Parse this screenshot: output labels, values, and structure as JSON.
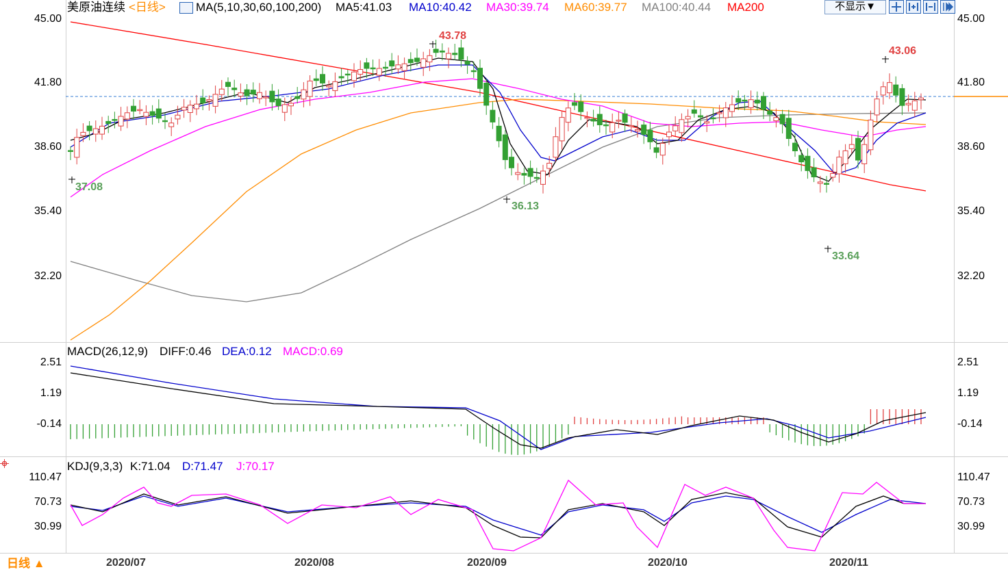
{
  "header": {
    "instrument": "美原油连续",
    "period": "<日线>",
    "indicator": "MA(5,10,30,60,100,200)",
    "ma5": "MA5:41.03",
    "ma10": "MA10:40.42",
    "ma30": "MA30:39.74",
    "ma60": "MA60:39.77",
    "ma100": "MA100:40.44",
    "ma200": "MA200",
    "hide_button": "不显示▼"
  },
  "colors": {
    "ma5": "#000000",
    "ma10": "#0000cc",
    "ma30": "#ff00ff",
    "ma60": "#ff8c00",
    "ma100": "#808080",
    "ma200": "#ff0000",
    "up": "#e04040",
    "down": "#33a033"
  },
  "price_axis": {
    "labels": [
      "45.00",
      "41.80",
      "38.60",
      "35.40",
      "32.20"
    ]
  },
  "price_annotations": {
    "high1": "43.78",
    "high2": "43.06",
    "low1": "37.08",
    "low2": "36.13",
    "low3": "33.64"
  },
  "macd": {
    "title": "MACD(26,12,9)",
    "diff": "DIFF:0.46",
    "dea": "DEA:0.12",
    "macd": "MACD:0.69",
    "axis": [
      "2.51",
      "1.19",
      "-0.14"
    ]
  },
  "kdj": {
    "title": "KDJ(9,3,3)",
    "k": "K:71.04",
    "d": "D:71.47",
    "j": "J:70.17",
    "axis": [
      "110.47",
      "70.73",
      "30.99"
    ]
  },
  "time_axis": {
    "period_button": "日线 ▲",
    "ticks": [
      "2020/07",
      "2020/08",
      "2020/09",
      "2020/10",
      "2020/11"
    ]
  },
  "toolbar_icons": [
    "move-icon",
    "zoom-in-icon",
    "zoom-out-icon",
    "fast-forward-icon"
  ]
}
